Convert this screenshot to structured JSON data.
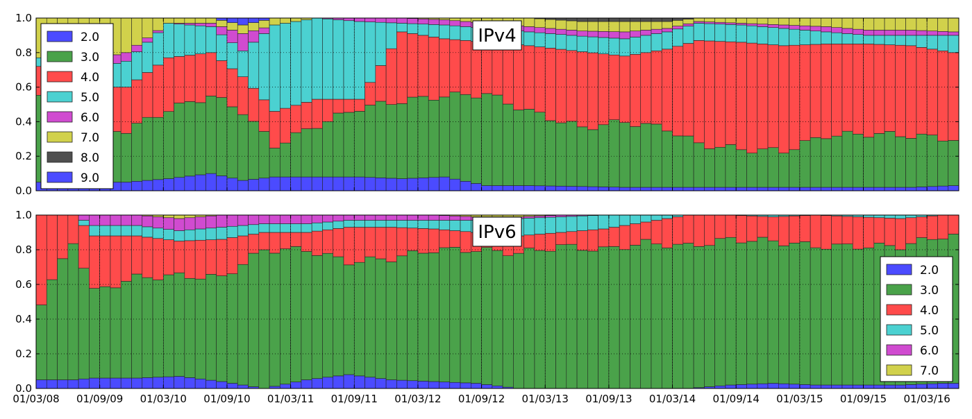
{
  "chart_data": {
    "type": "bar",
    "stacked": true,
    "normalized": true,
    "colors": {
      "2.0": "#4b4bff",
      "3.0": "#4aa24a",
      "4.0": "#ff4b4b",
      "5.0": "#4bd1d1",
      "6.0": "#d04bd0",
      "7.0": "#d1d14b",
      "8.0": "#4f4f4f",
      "9.0": "#4b4bff"
    },
    "x_tick_labels": [
      "01/03/08",
      "01/09/09",
      "01/03/10",
      "01/09/10",
      "01/03/11",
      "01/09/11",
      "01/03/12",
      "01/09/12",
      "01/03/13",
      "01/09/13",
      "01/03/14",
      "01/09/14",
      "01/03/15",
      "01/09/15",
      "01/03/16"
    ],
    "y_tick_labels": [
      "0.0",
      "0.2",
      "0.4",
      "0.6",
      "0.8",
      "1.0"
    ],
    "ylim": [
      0,
      1
    ],
    "grid": true,
    "panels": [
      {
        "title": "IPv4",
        "legend": [
          "2.0",
          "3.0",
          "4.0",
          "5.0",
          "6.0",
          "7.0",
          "8.0",
          "9.0"
        ],
        "legend_position": "upper-left",
        "keyframes": [
          {
            "i": 0,
            "v": [
              0.05,
              0.52,
              0.15,
              0.05,
              0.0,
              0.23,
              0.0,
              0.0
            ]
          },
          {
            "i": 4,
            "v": [
              0.05,
              0.3,
              0.25,
              0.1,
              0.05,
              0.25,
              0.0,
              0.0
            ]
          },
          {
            "i": 8,
            "v": [
              0.05,
              0.3,
              0.25,
              0.15,
              0.05,
              0.2,
              0.0,
              0.0
            ]
          },
          {
            "i": 12,
            "v": [
              0.07,
              0.4,
              0.3,
              0.2,
              0.0,
              0.03,
              0.0,
              0.0
            ]
          },
          {
            "i": 16,
            "v": [
              0.1,
              0.45,
              0.25,
              0.15,
              0.02,
              0.03,
              0.0,
              0.0
            ]
          },
          {
            "i": 19,
            "v": [
              0.06,
              0.4,
              0.2,
              0.15,
              0.1,
              0.05,
              0.0,
              0.04
            ]
          },
          {
            "i": 22,
            "v": [
              0.08,
              0.18,
              0.2,
              0.5,
              0.0,
              0.04,
              0.0,
              0.0
            ]
          },
          {
            "i": 26,
            "v": [
              0.08,
              0.3,
              0.15,
              0.47,
              0.0,
              0.0,
              0.0,
              0.0
            ]
          },
          {
            "i": 30,
            "v": [
              0.08,
              0.4,
              0.05,
              0.45,
              0.02,
              0.0,
              0.0,
              0.0
            ]
          },
          {
            "i": 34,
            "v": [
              0.07,
              0.45,
              0.4,
              0.05,
              0.03,
              0.0,
              0.0,
              0.0
            ]
          },
          {
            "i": 38,
            "v": [
              0.08,
              0.47,
              0.33,
              0.08,
              0.03,
              0.01,
              0.0,
              0.0
            ]
          },
          {
            "i": 42,
            "v": [
              0.03,
              0.53,
              0.3,
              0.08,
              0.03,
              0.03,
              0.0,
              0.0
            ]
          },
          {
            "i": 46,
            "v": [
              0.03,
              0.43,
              0.38,
              0.08,
              0.03,
              0.05,
              0.0,
              0.0
            ]
          },
          {
            "i": 51,
            "v": [
              0.025,
              0.34,
              0.44,
              0.09,
              0.03,
              0.055,
              0.02,
              0.0
            ]
          },
          {
            "i": 55,
            "v": [
              0.02,
              0.38,
              0.38,
              0.1,
              0.04,
              0.06,
              0.02,
              0.0
            ]
          },
          {
            "i": 59,
            "v": [
              0.02,
              0.34,
              0.46,
              0.1,
              0.02,
              0.04,
              0.02,
              0.0
            ]
          },
          {
            "i": 62,
            "v": [
              0.02,
              0.25,
              0.6,
              0.1,
              0.01,
              0.02,
              0.0,
              0.0
            ]
          },
          {
            "i": 66,
            "v": [
              0.02,
              0.22,
              0.62,
              0.1,
              0.01,
              0.03,
              0.0,
              0.0
            ]
          },
          {
            "i": 70,
            "v": [
              0.02,
              0.21,
              0.61,
              0.1,
              0.02,
              0.04,
              0.0,
              0.0
            ]
          },
          {
            "i": 74,
            "v": [
              0.02,
              0.3,
              0.53,
              0.07,
              0.03,
              0.05,
              0.0,
              0.0
            ]
          },
          {
            "i": 78,
            "v": [
              0.02,
              0.31,
              0.52,
              0.05,
              0.03,
              0.07,
              0.0,
              0.0
            ]
          },
          {
            "i": 82,
            "v": [
              0.02,
              0.3,
              0.52,
              0.06,
              0.03,
              0.07,
              0.0,
              0.0
            ]
          },
          {
            "i": 86,
            "v": [
              0.03,
              0.27,
              0.5,
              0.1,
              0.02,
              0.08,
              0.0,
              0.0
            ]
          }
        ]
      },
      {
        "title": "IPv6",
        "legend": [
          "2.0",
          "3.0",
          "4.0",
          "5.0",
          "6.0",
          "7.0"
        ],
        "legend_position": "lower-right",
        "keyframes": [
          {
            "i": 0,
            "v": [
              0.05,
              0.45,
              0.5,
              0.0,
              0.0,
              0.0,
              0.0,
              0.0
            ]
          },
          {
            "i": 3,
            "v": [
              0.05,
              0.8,
              0.15,
              0.0,
              0.0,
              0.0,
              0.0,
              0.0
            ]
          },
          {
            "i": 5,
            "v": [
              0.06,
              0.5,
              0.32,
              0.06,
              0.06,
              0.0,
              0.0,
              0.0
            ]
          },
          {
            "i": 9,
            "v": [
              0.06,
              0.58,
              0.24,
              0.06,
              0.06,
              0.0,
              0.0,
              0.0
            ]
          },
          {
            "i": 13,
            "v": [
              0.07,
              0.58,
              0.2,
              0.06,
              0.07,
              0.02,
              0.0,
              0.0
            ]
          },
          {
            "i": 17,
            "v": [
              0.04,
              0.6,
              0.22,
              0.07,
              0.07,
              0.0,
              0.0,
              0.0
            ]
          },
          {
            "i": 21,
            "v": [
              0.0,
              0.8,
              0.1,
              0.05,
              0.05,
              0.0,
              0.0,
              0.0
            ]
          },
          {
            "i": 25,
            "v": [
              0.05,
              0.75,
              0.1,
              0.05,
              0.05,
              0.0,
              0.0,
              0.0
            ]
          },
          {
            "i": 29,
            "v": [
              0.08,
              0.65,
              0.2,
              0.04,
              0.03,
              0.0,
              0.0,
              0.0
            ]
          },
          {
            "i": 33,
            "v": [
              0.05,
              0.7,
              0.18,
              0.04,
              0.03,
              0.0,
              0.0,
              0.0
            ]
          },
          {
            "i": 37,
            "v": [
              0.04,
              0.76,
              0.12,
              0.05,
              0.03,
              0.0,
              0.0,
              0.0
            ]
          },
          {
            "i": 41,
            "v": [
              0.03,
              0.77,
              0.1,
              0.07,
              0.02,
              0.01,
              0.0,
              0.0
            ]
          },
          {
            "i": 45,
            "v": [
              0.0,
              0.78,
              0.1,
              0.1,
              0.01,
              0.01,
              0.0,
              0.0
            ]
          },
          {
            "i": 49,
            "v": [
              0.0,
              0.82,
              0.08,
              0.09,
              0.01,
              0.0,
              0.0,
              0.0
            ]
          },
          {
            "i": 53,
            "v": [
              0.0,
              0.8,
              0.12,
              0.08,
              0.0,
              0.0,
              0.0,
              0.0
            ]
          },
          {
            "i": 57,
            "v": [
              0.0,
              0.84,
              0.12,
              0.04,
              0.0,
              0.0,
              0.0,
              0.0
            ]
          },
          {
            "i": 61,
            "v": [
              0.0,
              0.82,
              0.18,
              0.0,
              0.0,
              0.0,
              0.0,
              0.0
            ]
          },
          {
            "i": 65,
            "v": [
              0.02,
              0.84,
              0.14,
              0.0,
              0.0,
              0.0,
              0.0,
              0.0
            ]
          },
          {
            "i": 69,
            "v": [
              0.03,
              0.82,
              0.14,
              0.01,
              0.0,
              0.0,
              0.0,
              0.0
            ]
          },
          {
            "i": 73,
            "v": [
              0.02,
              0.8,
              0.18,
              0.0,
              0.0,
              0.0,
              0.0,
              0.0
            ]
          },
          {
            "i": 77,
            "v": [
              0.02,
              0.8,
              0.17,
              0.01,
              0.0,
              0.0,
              0.0,
              0.0
            ]
          },
          {
            "i": 81,
            "v": [
              0.02,
              0.8,
              0.16,
              0.02,
              0.0,
              0.0,
              0.0,
              0.0
            ]
          },
          {
            "i": 85,
            "v": [
              0.03,
              0.85,
              0.12,
              0.0,
              0.0,
              0.0,
              0.0,
              0.0
            ]
          },
          {
            "i": 86,
            "v": [
              0.03,
              0.85,
              0.12,
              0.0,
              0.0,
              0.0,
              0.0,
              0.0
            ]
          }
        ]
      }
    ]
  }
}
